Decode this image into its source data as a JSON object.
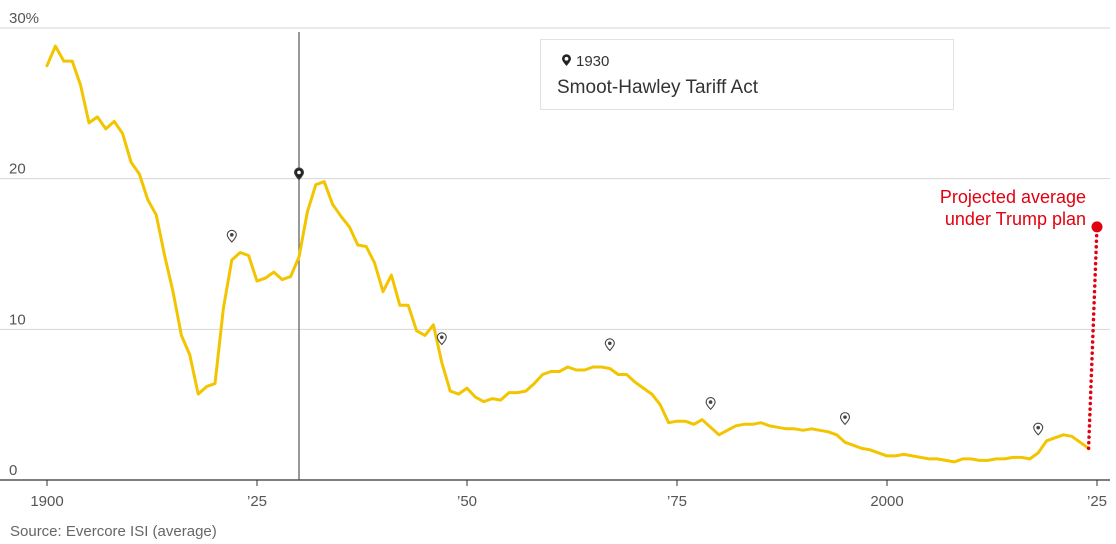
{
  "chart_data": {
    "type": "line",
    "y_unit_label": "30%",
    "x_tick_labels": [
      "1900",
      "’25",
      "’50",
      "’75",
      "2000",
      "’25"
    ],
    "x_tick_years": [
      1900,
      1925,
      1950,
      1975,
      2000,
      2025
    ],
    "y_tick_labels": [
      "20",
      "10",
      "0"
    ],
    "y_tick_values": [
      20,
      10,
      0
    ],
    "xlim": [
      1900,
      2025
    ],
    "ylim": [
      0,
      30
    ],
    "grid": true,
    "line_color": "#f2c500",
    "projection_color": "#e3000f",
    "series": [
      {
        "x": [
          1900,
          1901,
          1902,
          1903,
          1904,
          1905,
          1906,
          1907,
          1908,
          1909,
          1910,
          1911,
          1912,
          1913,
          1914,
          1915,
          1916,
          1917,
          1918,
          1919,
          1920,
          1921,
          1922,
          1923,
          1924,
          1925,
          1926,
          1927,
          1928,
          1929,
          1930,
          1931,
          1932,
          1933,
          1934,
          1935,
          1936,
          1937,
          1938,
          1939,
          1940,
          1941,
          1942,
          1943,
          1944,
          1945,
          1946,
          1947,
          1948,
          1949,
          1950,
          1951,
          1952,
          1953,
          1954,
          1955,
          1956,
          1957,
          1958,
          1959,
          1960,
          1961,
          1962,
          1963,
          1964,
          1965,
          1966,
          1967,
          1968,
          1969,
          1970,
          1971,
          1972,
          1973,
          1974,
          1975,
          1976,
          1977,
          1978,
          1979,
          1980,
          1981,
          1982,
          1983,
          1984,
          1985,
          1986,
          1987,
          1988,
          1989,
          1990,
          1991,
          1992,
          1993,
          1994,
          1995,
          1996,
          1997,
          1998,
          1999,
          2000,
          2001,
          2002,
          2003,
          2004,
          2005,
          2006,
          2007,
          2008,
          2009,
          2010,
          2011,
          2012,
          2013,
          2014,
          2015,
          2016,
          2017,
          2018,
          2019,
          2020,
          2021,
          2022,
          2023,
          2024
        ],
        "y": [
          27.5,
          28.8,
          27.8,
          27.8,
          26.2,
          23.7,
          24.1,
          23.3,
          23.8,
          23.0,
          21.1,
          20.3,
          18.6,
          17.6,
          14.9,
          12.5,
          9.6,
          8.3,
          5.7,
          6.2,
          6.4,
          11.4,
          14.6,
          15.1,
          14.9,
          13.2,
          13.4,
          13.8,
          13.3,
          13.5,
          14.8,
          17.8,
          19.6,
          19.8,
          18.3,
          17.5,
          16.8,
          15.6,
          15.5,
          14.4,
          12.5,
          13.6,
          11.6,
          11.6,
          9.9,
          9.6,
          10.3,
          7.8,
          5.9,
          5.7,
          6.1,
          5.5,
          5.2,
          5.4,
          5.3,
          5.8,
          5.8,
          5.9,
          6.4,
          7.0,
          7.2,
          7.2,
          7.5,
          7.3,
          7.3,
          7.5,
          7.5,
          7.4,
          7.0,
          7.0,
          6.5,
          6.1,
          5.7,
          5.0,
          3.8,
          3.9,
          3.9,
          3.7,
          4.0,
          3.5,
          3.0,
          3.3,
          3.6,
          3.7,
          3.7,
          3.8,
          3.6,
          3.5,
          3.4,
          3.4,
          3.3,
          3.4,
          3.3,
          3.2,
          3.0,
          2.5,
          2.3,
          2.1,
          2.0,
          1.8,
          1.6,
          1.6,
          1.7,
          1.6,
          1.5,
          1.4,
          1.4,
          1.3,
          1.2,
          1.4,
          1.4,
          1.3,
          1.3,
          1.4,
          1.4,
          1.5,
          1.5,
          1.4,
          1.8,
          2.6,
          2.8,
          3.0,
          2.9,
          2.5,
          2.1
        ]
      }
    ],
    "projection": {
      "from": [
        2024,
        2.1
      ],
      "to": [
        2025,
        16.8
      ]
    },
    "markers": [
      1922,
      1930,
      1947,
      1967,
      1979,
      1995,
      2018
    ],
    "projection_label_lines": [
      "Projected average",
      "under Trump plan"
    ],
    "tooltip": {
      "year": "1930",
      "event": "Smoot-Hawley Tariff Act"
    },
    "source": "Source: Evercore ISI (average)"
  }
}
